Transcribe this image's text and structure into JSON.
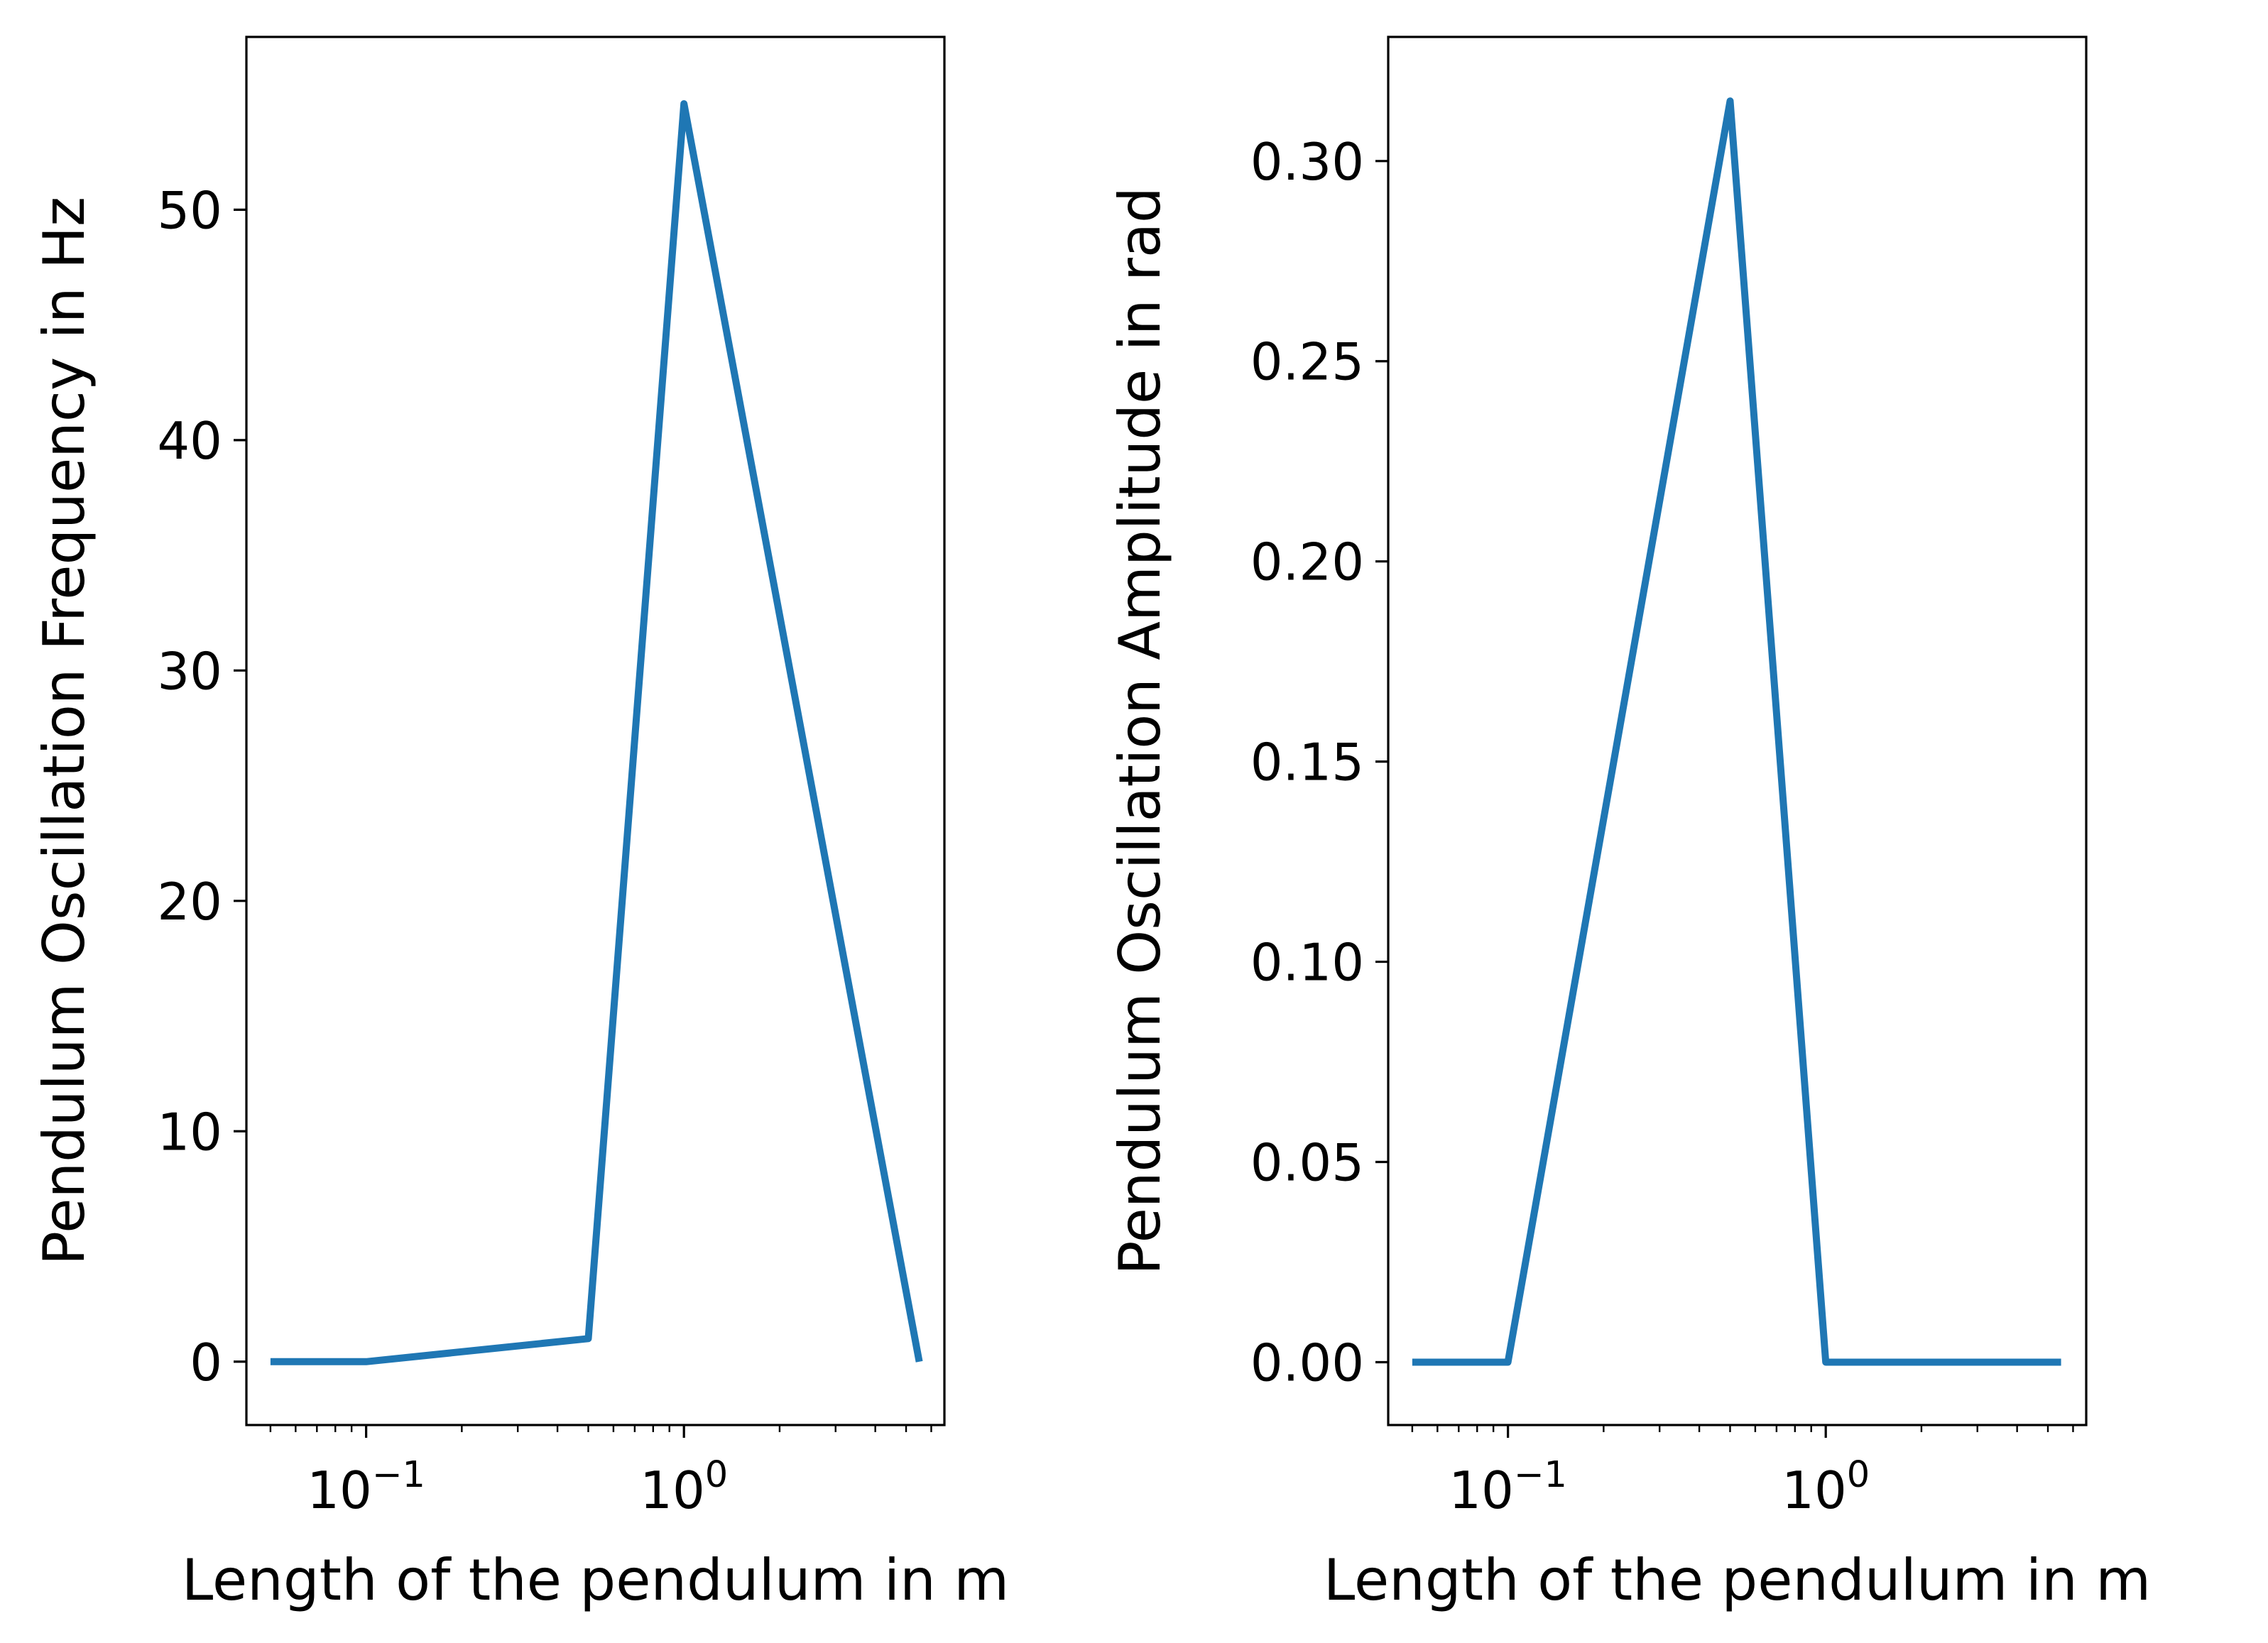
{
  "colors": {
    "line": "#1f77b4",
    "axes": "#000000",
    "background": "#ffffff"
  },
  "chart_data": [
    {
      "type": "line",
      "xlabel": "Length of the pendulum in m",
      "ylabel": "Pendulum Oscillation Frequency in Hz",
      "xscale": "log",
      "xlim": [
        0.042,
        6.6
      ],
      "ylim": [
        -2.75,
        57.5
      ],
      "grid": false,
      "x": [
        0.05,
        0.1,
        0.5,
        1,
        5.5
      ],
      "y": [
        0,
        0,
        1,
        54.6,
        0
      ],
      "xticks": [
        {
          "value": 0.1,
          "base": "10",
          "exp": "−1"
        },
        {
          "value": 1,
          "base": "10",
          "exp": "0"
        }
      ],
      "yticks": [
        {
          "value": 0,
          "label": "0"
        },
        {
          "value": 10,
          "label": "10"
        },
        {
          "value": 20,
          "label": "20"
        },
        {
          "value": 30,
          "label": "30"
        },
        {
          "value": 40,
          "label": "40"
        },
        {
          "value": 50,
          "label": "50"
        }
      ]
    },
    {
      "type": "line",
      "xlabel": "Length of the pendulum in m",
      "ylabel": "Pendulum Oscillation Amplitude in rad",
      "xscale": "log",
      "xlim": [
        0.042,
        6.6
      ],
      "ylim": [
        -0.0157,
        0.331
      ],
      "grid": false,
      "x": [
        0.05,
        0.1,
        0.5,
        1,
        5.5
      ],
      "y": [
        0,
        0,
        0.315,
        0,
        0
      ],
      "xticks": [
        {
          "value": 0.1,
          "base": "10",
          "exp": "−1"
        },
        {
          "value": 1,
          "base": "10",
          "exp": "0"
        }
      ],
      "yticks": [
        {
          "value": 0,
          "label": "0.00"
        },
        {
          "value": 0.05,
          "label": "0.05"
        },
        {
          "value": 0.1,
          "label": "0.10"
        },
        {
          "value": 0.15,
          "label": "0.15"
        },
        {
          "value": 0.2,
          "label": "0.20"
        },
        {
          "value": 0.25,
          "label": "0.25"
        },
        {
          "value": 0.3,
          "label": "0.30"
        }
      ]
    }
  ]
}
